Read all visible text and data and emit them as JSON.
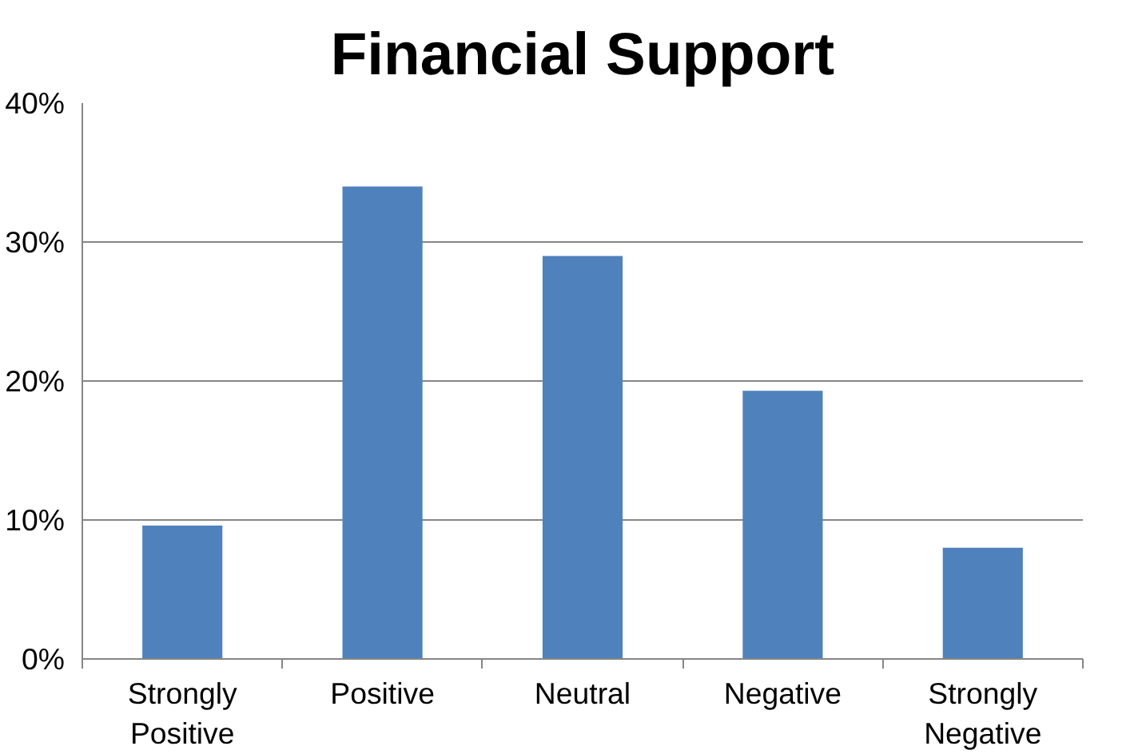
{
  "chart_data": {
    "type": "bar",
    "title": "Financial Support",
    "categories": [
      "Strongly Positive",
      "Positive",
      "Neutral",
      "Negative",
      "Strongly Negative"
    ],
    "values": [
      9.6,
      34,
      29,
      19.3,
      8
    ],
    "color": "#4f81bd",
    "ylim": [
      0,
      40
    ],
    "yticks": [
      {
        "value": 0,
        "label": "0%"
      },
      {
        "value": 10,
        "label": "10%"
      },
      {
        "value": 20,
        "label": "20%"
      },
      {
        "value": 30,
        "label": "30%"
      },
      {
        "value": 40,
        "label": "40%"
      }
    ],
    "grid": "y"
  }
}
